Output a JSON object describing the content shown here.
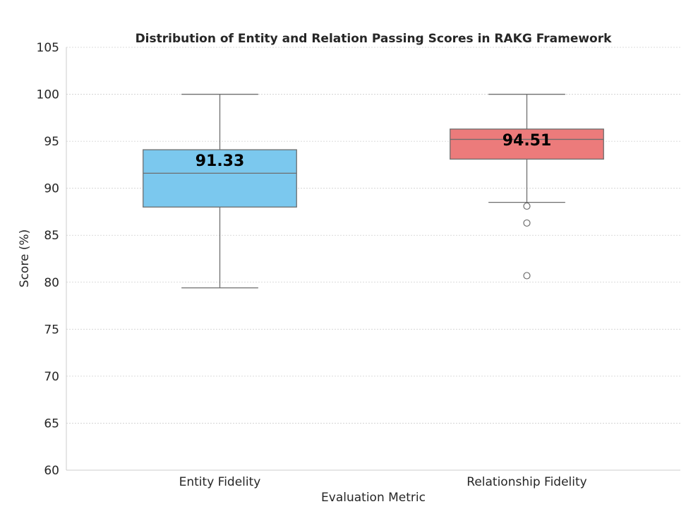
{
  "chart_data": {
    "type": "box",
    "title": "Distribution of Entity and Relation Passing Scores in RAKG Framework",
    "xlabel": "Evaluation Metric",
    "ylabel": "Score (%)",
    "ylim": [
      60,
      105
    ],
    "yticks": [
      60,
      65,
      70,
      75,
      80,
      85,
      90,
      95,
      100,
      105
    ],
    "ytick_labels": [
      "60",
      "65",
      "70",
      "75",
      "80",
      "85",
      "90",
      "95",
      "100",
      "105"
    ],
    "grid": true,
    "categories": [
      "Entity Fidelity",
      "Relationship Fidelity"
    ],
    "boxes": [
      {
        "name": "Entity Fidelity",
        "color": "#7bc8ee",
        "whisker_low": 79.4,
        "q1": 88.0,
        "median": 91.6,
        "q3": 94.1,
        "whisker_high": 100.0,
        "outliers": [],
        "mean_label": "91.33",
        "mean": 91.33
      },
      {
        "name": "Relationship Fidelity",
        "color": "#ec7b7b",
        "whisker_low": 88.5,
        "q1": 93.1,
        "median": 95.2,
        "q3": 96.3,
        "whisker_high": 100.0,
        "outliers": [
          88.1,
          86.3,
          80.7
        ],
        "mean_label": "94.51",
        "mean": 94.51
      }
    ]
  }
}
